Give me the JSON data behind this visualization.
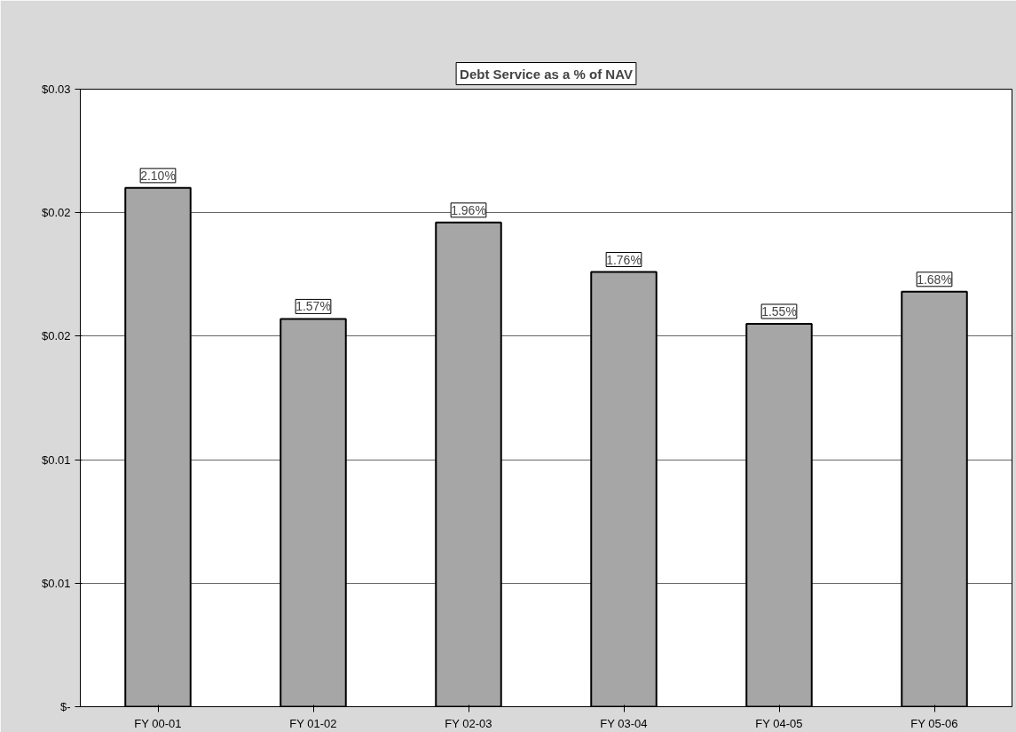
{
  "chart_data": {
    "type": "bar",
    "title": "Debt Service as a % of NAV",
    "categories": [
      "FY 00-01",
      "FY 01-02",
      "FY 02-03",
      "FY 03-04",
      "FY 04-05",
      "FY 05-06"
    ],
    "values": [
      0.021,
      0.0157,
      0.0196,
      0.0176,
      0.0155,
      0.0168
    ],
    "value_labels": [
      "2.10%",
      "1.57%",
      "1.96%",
      "1.76%",
      "1.55%",
      "1.68%"
    ],
    "color": "#a6a6a6",
    "ylim": [
      0,
      0.025
    ],
    "yticks": [
      {
        "value": 0,
        "label": "$-"
      },
      {
        "value": 0.005,
        "label": "$0.01"
      },
      {
        "value": 0.01,
        "label": "$0.01"
      },
      {
        "value": 0.015,
        "label": "$0.02"
      },
      {
        "value": 0.02,
        "label": "$0.02"
      },
      {
        "value": 0.025,
        "label": "$0.03"
      }
    ],
    "grid": "y"
  }
}
